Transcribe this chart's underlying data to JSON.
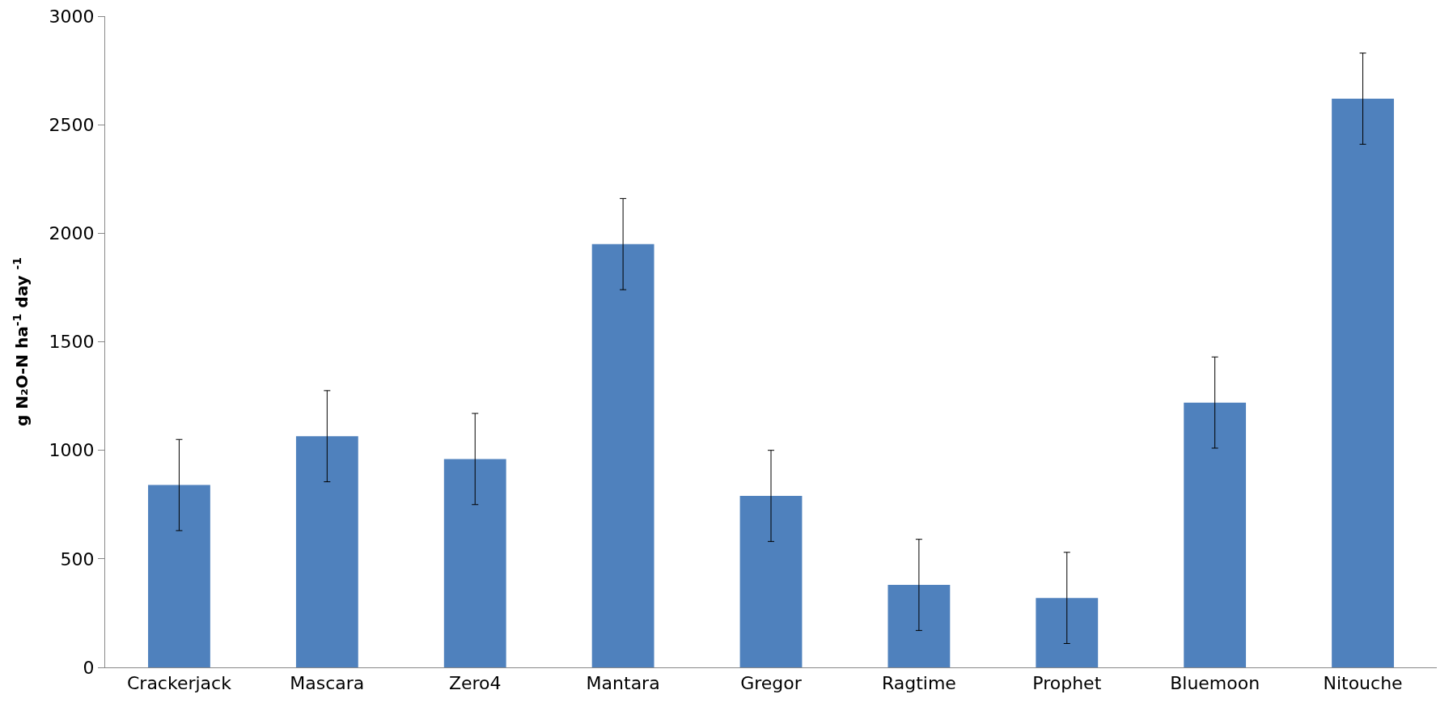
{
  "chart_data": {
    "type": "bar",
    "ylabel": "g N₂O-N ha$^{-1}$ day $^{-1}$",
    "categories": [
      "Crackerjack",
      "Mascara",
      "Zero4",
      "Mantara",
      "Gregor",
      "Ragtime",
      "Prophet",
      "Bluemoon",
      "Nitouche"
    ],
    "values": [
      840,
      1065,
      960,
      1950,
      790,
      380,
      320,
      1220,
      2620
    ],
    "errors": [
      210,
      210,
      210,
      210,
      210,
      210,
      210,
      210,
      210
    ],
    "color": "#4f81bd",
    "ylim": [
      0,
      3000
    ],
    "yticks": [
      0,
      500,
      1000,
      1500,
      2000,
      2500,
      3000
    ],
    "grid": false
  }
}
